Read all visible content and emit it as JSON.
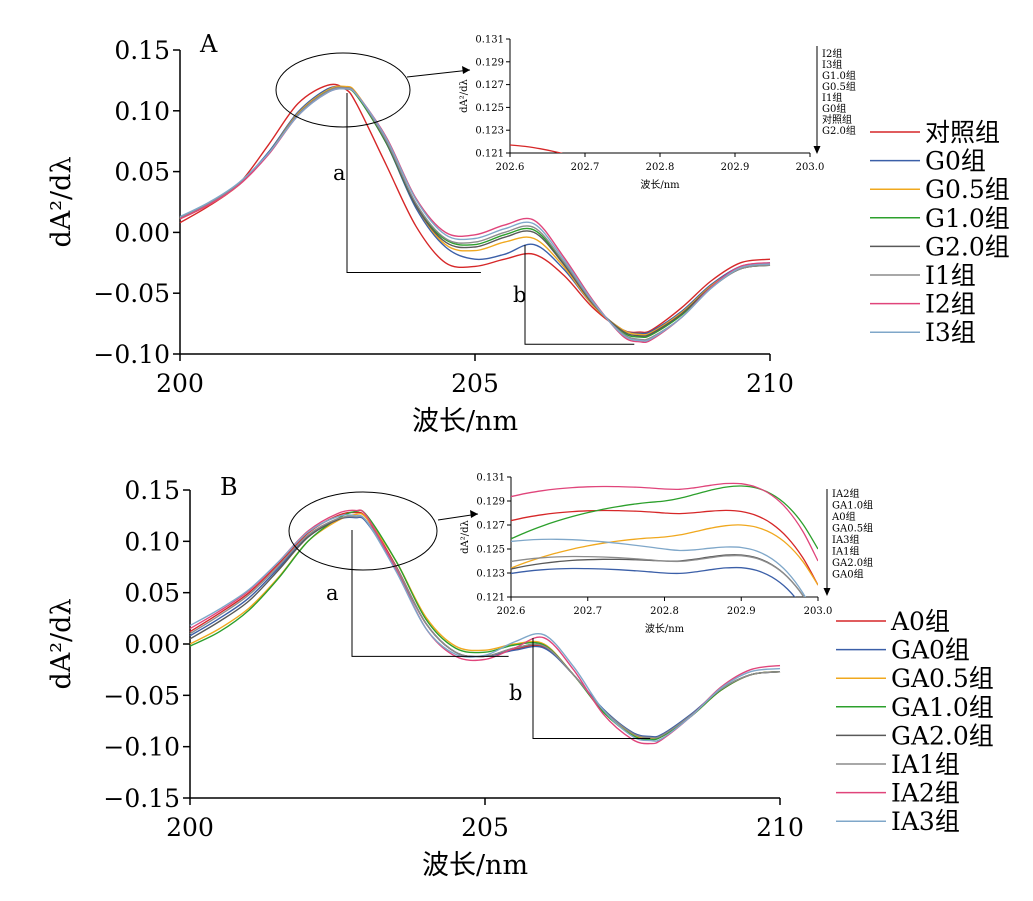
{
  "chart_data": [
    {
      "panel": "A",
      "type": "line",
      "xlabel": "波长/nm",
      "ylabel": "dA²/dλ",
      "xlim": [
        200,
        210
      ],
      "ylim": [
        -0.1,
        0.15
      ],
      "x_ticks": [
        "200",
        "205",
        "210"
      ],
      "y_ticks": [
        "0.15",
        "0.10",
        "0.05",
        "0.00",
        "−0.05",
        "−0.10"
      ],
      "annotations": [
        "a",
        "b"
      ],
      "x": [
        200,
        200.5,
        201,
        201.5,
        202,
        202.5,
        202.8,
        203,
        203.5,
        204,
        204.5,
        205,
        205.5,
        206,
        206.5,
        207,
        207.5,
        207.8,
        208,
        208.5,
        209,
        209.5,
        210
      ],
      "series": [
        {
          "name": "对照组",
          "color": "#d62728",
          "values": [
            0.008,
            0.022,
            0.04,
            0.072,
            0.106,
            0.121,
            0.118,
            0.105,
            0.055,
            0.005,
            -0.025,
            -0.028,
            -0.022,
            -0.018,
            -0.035,
            -0.062,
            -0.08,
            -0.082,
            -0.08,
            -0.062,
            -0.04,
            -0.025,
            -0.022
          ]
        },
        {
          "name": "G0组",
          "color": "#3b5fa8",
          "values": [
            0.012,
            0.024,
            0.04,
            0.066,
            0.099,
            0.118,
            0.119,
            0.113,
            0.073,
            0.02,
            -0.012,
            -0.022,
            -0.018,
            -0.01,
            -0.03,
            -0.06,
            -0.08,
            -0.083,
            -0.081,
            -0.065,
            -0.043,
            -0.028,
            -0.025
          ]
        },
        {
          "name": "G0.5组",
          "color": "#f0a81e",
          "values": [
            0.011,
            0.023,
            0.039,
            0.065,
            0.098,
            0.117,
            0.12,
            0.114,
            0.075,
            0.022,
            -0.01,
            -0.015,
            -0.008,
            -0.005,
            -0.028,
            -0.06,
            -0.08,
            -0.084,
            -0.082,
            -0.066,
            -0.044,
            -0.029,
            -0.026
          ]
        },
        {
          "name": "G1.0组",
          "color": "#2ca02c",
          "values": [
            0.012,
            0.024,
            0.04,
            0.065,
            0.097,
            0.116,
            0.118,
            0.112,
            0.073,
            0.022,
            -0.006,
            -0.01,
            -0.002,
            0.002,
            -0.025,
            -0.058,
            -0.082,
            -0.086,
            -0.084,
            -0.068,
            -0.045,
            -0.03,
            -0.027
          ]
        },
        {
          "name": "G2.0组",
          "color": "#595959",
          "values": [
            0.012,
            0.024,
            0.04,
            0.065,
            0.097,
            0.116,
            0.119,
            0.113,
            0.074,
            0.022,
            -0.008,
            -0.012,
            -0.004,
            0.0,
            -0.026,
            -0.059,
            -0.081,
            -0.085,
            -0.083,
            -0.067,
            -0.045,
            -0.03,
            -0.027
          ]
        },
        {
          "name": "I1组",
          "color": "#8c8c8c",
          "values": [
            0.012,
            0.024,
            0.04,
            0.065,
            0.097,
            0.116,
            0.119,
            0.113,
            0.075,
            0.024,
            -0.005,
            -0.008,
            0.0,
            0.004,
            -0.024,
            -0.058,
            -0.083,
            -0.088,
            -0.086,
            -0.07,
            -0.046,
            -0.03,
            -0.027
          ]
        },
        {
          "name": "I2组",
          "color": "#e0457b",
          "values": [
            0.011,
            0.023,
            0.039,
            0.064,
            0.096,
            0.115,
            0.118,
            0.113,
            0.078,
            0.028,
            0.0,
            -0.002,
            0.006,
            0.01,
            -0.02,
            -0.056,
            -0.085,
            -0.09,
            -0.088,
            -0.07,
            -0.045,
            -0.028,
            -0.025
          ]
        },
        {
          "name": "I3组",
          "color": "#7fa7c9",
          "values": [
            0.013,
            0.025,
            0.041,
            0.065,
            0.096,
            0.115,
            0.118,
            0.113,
            0.077,
            0.027,
            -0.002,
            -0.005,
            0.003,
            0.007,
            -0.022,
            -0.057,
            -0.084,
            -0.089,
            -0.087,
            -0.07,
            -0.046,
            -0.029,
            -0.026
          ]
        }
      ],
      "inset": {
        "xlabel": "波长/nm",
        "ylabel": "dA²/dλ",
        "xlim": [
          202.6,
          203.0
        ],
        "ylim": [
          0.121,
          0.131
        ],
        "x_ticks": [
          "202.6",
          "202.7",
          "202.8",
          "202.9",
          "203.0"
        ],
        "y_ticks": [
          "0.131",
          "0.129",
          "0.127",
          "0.125",
          "0.123",
          "0.121"
        ],
        "order_labels": [
          "I2组",
          "I3组",
          "G1.0组",
          "G0.5组",
          "I1组",
          "G0组",
          "对照组",
          "G2.0组"
        ]
      }
    },
    {
      "panel": "B",
      "type": "line",
      "xlabel": "波长/nm",
      "ylabel": "dA²/dλ",
      "xlim": [
        200,
        210
      ],
      "ylim": [
        -0.15,
        0.15
      ],
      "x_ticks": [
        "200",
        "205",
        "210"
      ],
      "y_ticks": [
        "0.15",
        "0.10",
        "0.05",
        "0.00",
        "−0.05",
        "−0.10",
        "−0.15"
      ],
      "annotations": [
        "a",
        "b"
      ],
      "x": [
        200,
        200.5,
        201,
        201.5,
        202,
        202.5,
        202.8,
        203,
        203.5,
        204,
        204.5,
        205,
        205.5,
        206,
        206.5,
        207,
        207.5,
        207.8,
        208,
        208.5,
        209,
        209.5,
        210
      ],
      "series": [
        {
          "name": "A0组",
          "color": "#d62728",
          "values": [
            0.012,
            0.03,
            0.05,
            0.078,
            0.108,
            0.125,
            0.128,
            0.122,
            0.075,
            0.02,
            -0.008,
            -0.012,
            -0.005,
            -0.003,
            -0.03,
            -0.065,
            -0.088,
            -0.092,
            -0.09,
            -0.07,
            -0.045,
            -0.03,
            -0.027
          ]
        },
        {
          "name": "GA0组",
          "color": "#3b5fa8",
          "values": [
            0.008,
            0.025,
            0.045,
            0.074,
            0.105,
            0.121,
            0.123,
            0.118,
            0.073,
            0.02,
            -0.008,
            -0.012,
            -0.006,
            -0.004,
            -0.03,
            -0.063,
            -0.086,
            -0.09,
            -0.088,
            -0.068,
            -0.044,
            -0.03,
            -0.027
          ]
        },
        {
          "name": "GA0.5组",
          "color": "#f0a81e",
          "values": [
            0.0,
            0.015,
            0.035,
            0.065,
            0.1,
            0.12,
            0.126,
            0.122,
            0.08,
            0.026,
            -0.002,
            -0.006,
            0.0,
            0.0,
            -0.03,
            -0.065,
            -0.088,
            -0.092,
            -0.09,
            -0.07,
            -0.045,
            -0.03,
            -0.027
          ]
        },
        {
          "name": "GA1.0组",
          "color": "#2ca02c",
          "values": [
            -0.002,
            0.012,
            0.033,
            0.064,
            0.1,
            0.122,
            0.129,
            0.125,
            0.08,
            0.024,
            -0.004,
            -0.008,
            -0.001,
            -0.001,
            -0.03,
            -0.066,
            -0.089,
            -0.093,
            -0.09,
            -0.07,
            -0.045,
            -0.03,
            -0.027
          ]
        },
        {
          "name": "GA2.0组",
          "color": "#595959",
          "values": [
            0.005,
            0.022,
            0.042,
            0.072,
            0.104,
            0.121,
            0.124,
            0.119,
            0.074,
            0.02,
            -0.008,
            -0.012,
            -0.004,
            -0.002,
            -0.03,
            -0.064,
            -0.087,
            -0.091,
            -0.089,
            -0.069,
            -0.044,
            -0.03,
            -0.027
          ]
        },
        {
          "name": "IA1组",
          "color": "#8c8c8c",
          "values": [
            0.01,
            0.028,
            0.048,
            0.076,
            0.106,
            0.122,
            0.124,
            0.119,
            0.074,
            0.02,
            -0.008,
            -0.012,
            -0.004,
            -0.002,
            -0.03,
            -0.064,
            -0.087,
            -0.091,
            -0.089,
            -0.069,
            -0.044,
            -0.03,
            -0.027
          ]
        },
        {
          "name": "IA2组",
          "color": "#e0457b",
          "values": [
            0.015,
            0.032,
            0.052,
            0.08,
            0.11,
            0.127,
            0.13,
            0.124,
            0.072,
            0.015,
            -0.012,
            -0.015,
            -0.004,
            0.006,
            -0.025,
            -0.068,
            -0.093,
            -0.097,
            -0.093,
            -0.07,
            -0.042,
            -0.025,
            -0.021
          ]
        },
        {
          "name": "IA3组",
          "color": "#7fa7c9",
          "values": [
            0.018,
            0.034,
            0.053,
            0.08,
            0.109,
            0.124,
            0.125,
            0.119,
            0.07,
            0.015,
            -0.01,
            -0.011,
            0.002,
            0.009,
            -0.022,
            -0.064,
            -0.09,
            -0.094,
            -0.092,
            -0.07,
            -0.043,
            -0.027,
            -0.024
          ]
        }
      ],
      "inset": {
        "xlabel": "波长/nm",
        "ylabel": "dA²/dλ",
        "xlim": [
          202.6,
          203.0
        ],
        "ylim": [
          0.121,
          0.131
        ],
        "x_ticks": [
          "202.6",
          "202.7",
          "202.8",
          "202.9",
          "203.0"
        ],
        "y_ticks": [
          "0.131",
          "0.129",
          "0.127",
          "0.125",
          "0.123",
          "0.121"
        ],
        "order_labels": [
          "IA2组",
          "GA1.0组",
          "A0组",
          "GA0.5组",
          "IA3组",
          "IA1组",
          "GA2.0组",
          "GA0组"
        ]
      }
    }
  ]
}
